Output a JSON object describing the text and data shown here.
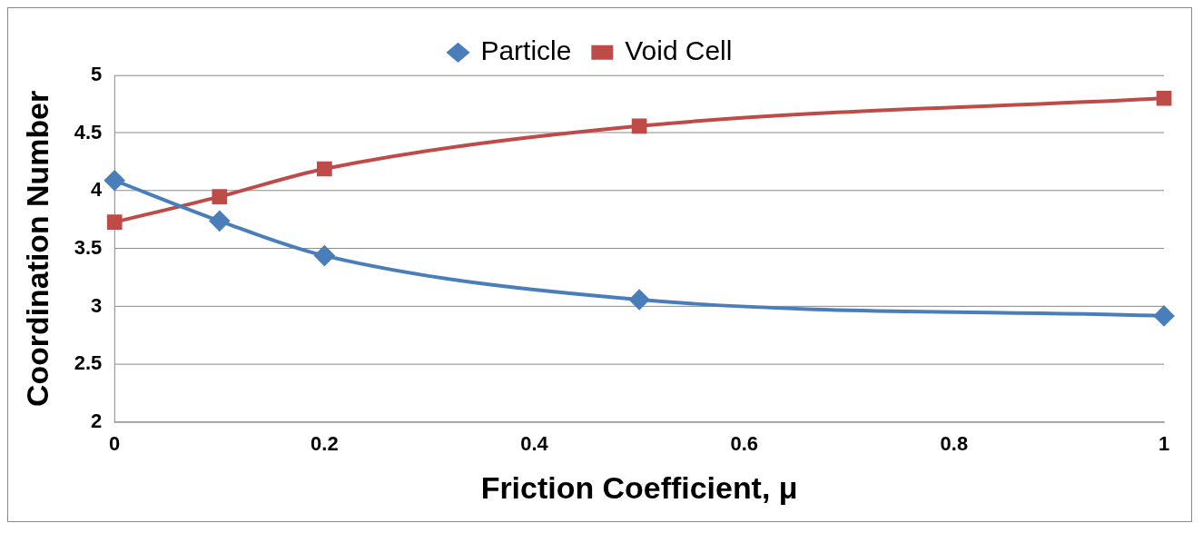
{
  "chart_data": {
    "type": "line",
    "xlabel": "Friction Coefficient, μ",
    "ylabel": "Coordination Number",
    "xlim": [
      0,
      1
    ],
    "xticks": [
      0,
      0.2,
      0.4,
      0.6,
      0.8,
      1
    ],
    "ylim": [
      2,
      5
    ],
    "yticks": [
      2,
      2.5,
      3,
      3.5,
      4,
      4.5,
      5
    ],
    "grid": "y",
    "legend": "top",
    "series": [
      {
        "name": "Particle",
        "color": "#4a7ebb",
        "marker": "diamond",
        "x": [
          0,
          0.1,
          0.2,
          0.5,
          1
        ],
        "values": [
          4.09,
          3.74,
          3.44,
          3.06,
          2.92
        ]
      },
      {
        "name": "Void Cell",
        "color": "#be4b48",
        "marker": "square",
        "x": [
          0,
          0.1,
          0.2,
          0.5,
          1
        ],
        "values": [
          3.73,
          3.95,
          4.19,
          4.56,
          4.8
        ]
      }
    ]
  }
}
